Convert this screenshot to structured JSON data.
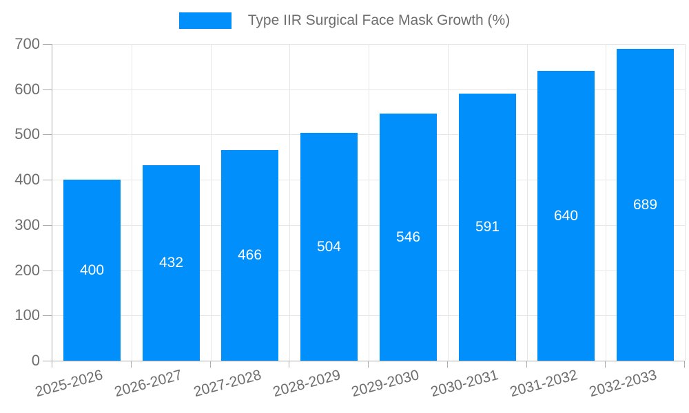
{
  "chart_data": {
    "type": "bar",
    "title": "",
    "legend": {
      "label": "Type IIR Surgical Face Mask Growth (%)",
      "position": "top"
    },
    "categories": [
      "2025-2026",
      "2026-2027",
      "2027-2028",
      "2028-2029",
      "2029-2030",
      "2030-2031",
      "2031-2032",
      "2032-2033"
    ],
    "values": [
      400,
      432,
      466,
      504,
      546,
      591,
      640,
      689
    ],
    "data_labels": [
      "400",
      "432",
      "466",
      "504",
      "546",
      "591",
      "640",
      "689"
    ],
    "xlabel": "",
    "ylabel": "",
    "ylim": [
      0,
      700
    ],
    "ytick_labels": [
      "0",
      "100",
      "200",
      "300",
      "400",
      "500",
      "600",
      "700"
    ],
    "ytick_values": [
      0,
      100,
      200,
      300,
      400,
      500,
      600,
      700
    ],
    "grid": true,
    "colors": {
      "bar": "#008FFB",
      "data_label_text": "#FFFFFF",
      "axis_text": "#6E6E6E",
      "grid_line": "#E6E6E6",
      "axis_line": "#ABABAB"
    }
  }
}
